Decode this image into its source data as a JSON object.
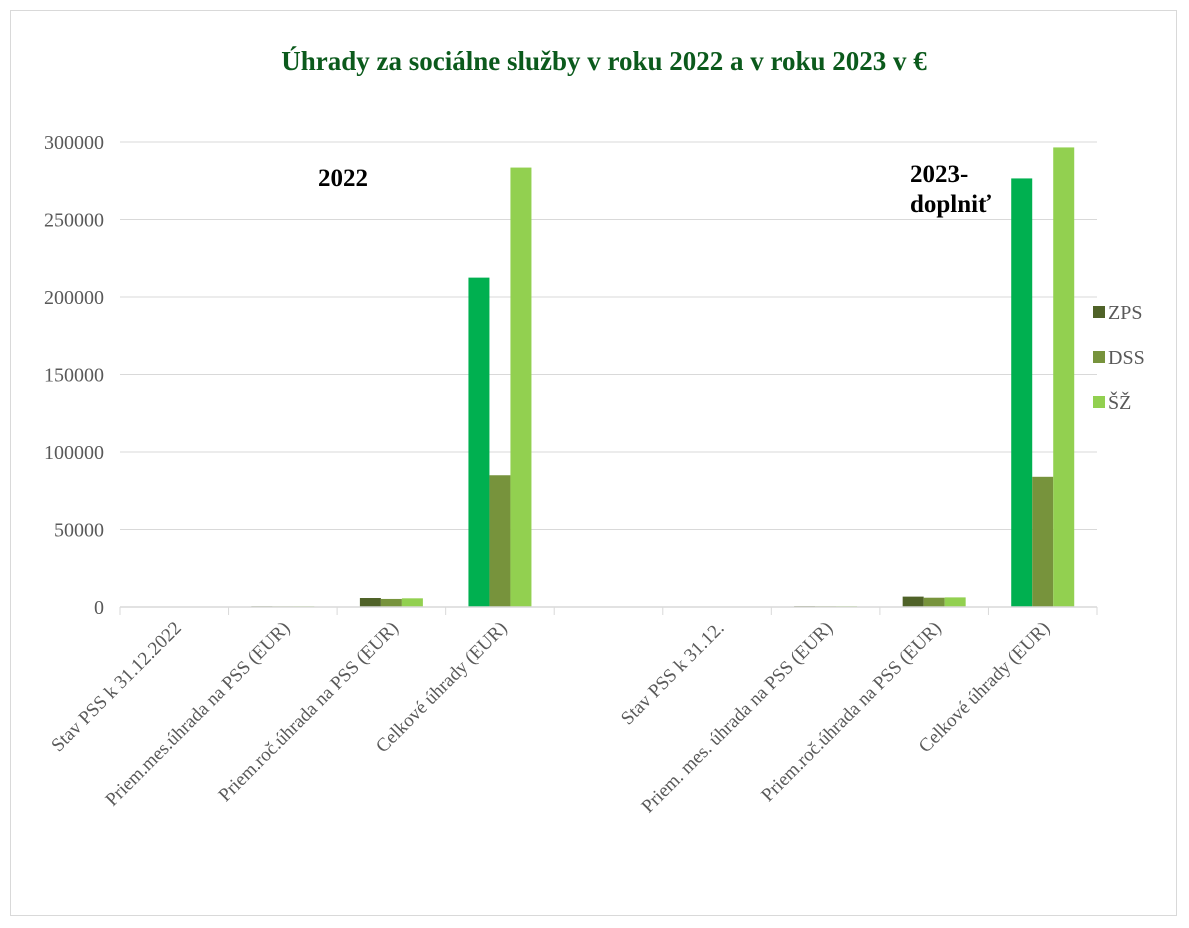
{
  "chart_data": {
    "type": "bar",
    "title": "Úhrady za sociálne služby v roku 2022 a v roku 2023 v €",
    "xlabel": "",
    "ylabel": "",
    "ylim": [
      0,
      300000
    ],
    "yticks": [
      0,
      50000,
      100000,
      150000,
      200000,
      250000,
      300000
    ],
    "grid": true,
    "legend_position": "right",
    "categories": [
      "Stav PSS k 31.12.2022",
      "Priem.mes.úhrada na PSS (EUR)",
      "Priem.roč.úhrada na PSS (EUR)",
      "Celkové úhrady (EUR)",
      "",
      "Stav PSS k 31.12.",
      "Priem. mes. úhrada na PSS (EUR)",
      "Priem.roč.úhrada na PSS (EUR)",
      "Celkové úhrady (EUR)"
    ],
    "series": [
      {
        "name": "ZPS",
        "color": "#4f6228",
        "values": [
          60,
          480,
          5800,
          0,
          null,
          60,
          550,
          6700,
          0
        ]
      },
      {
        "name": "DSS",
        "color": "#77933c",
        "values": [
          30,
          430,
          5200,
          85000,
          null,
          30,
          500,
          6000,
          84000
        ]
      },
      {
        "name": "ŠŽ",
        "color": "#92d050",
        "values": [
          60,
          470,
          5600,
          283500,
          null,
          60,
          520,
          6200,
          296500
        ]
      }
    ],
    "extra_bars": [
      {
        "category_index": 3,
        "color": "#00b050",
        "value": 212500
      },
      {
        "category_index": 8,
        "color": "#00b050",
        "value": 276500
      }
    ],
    "annotations": [
      {
        "lines": [
          "2022"
        ],
        "anchor": "top-left-group"
      },
      {
        "lines": [
          "2023-",
          "doplniť"
        ],
        "anchor": "top-right-group"
      }
    ]
  }
}
